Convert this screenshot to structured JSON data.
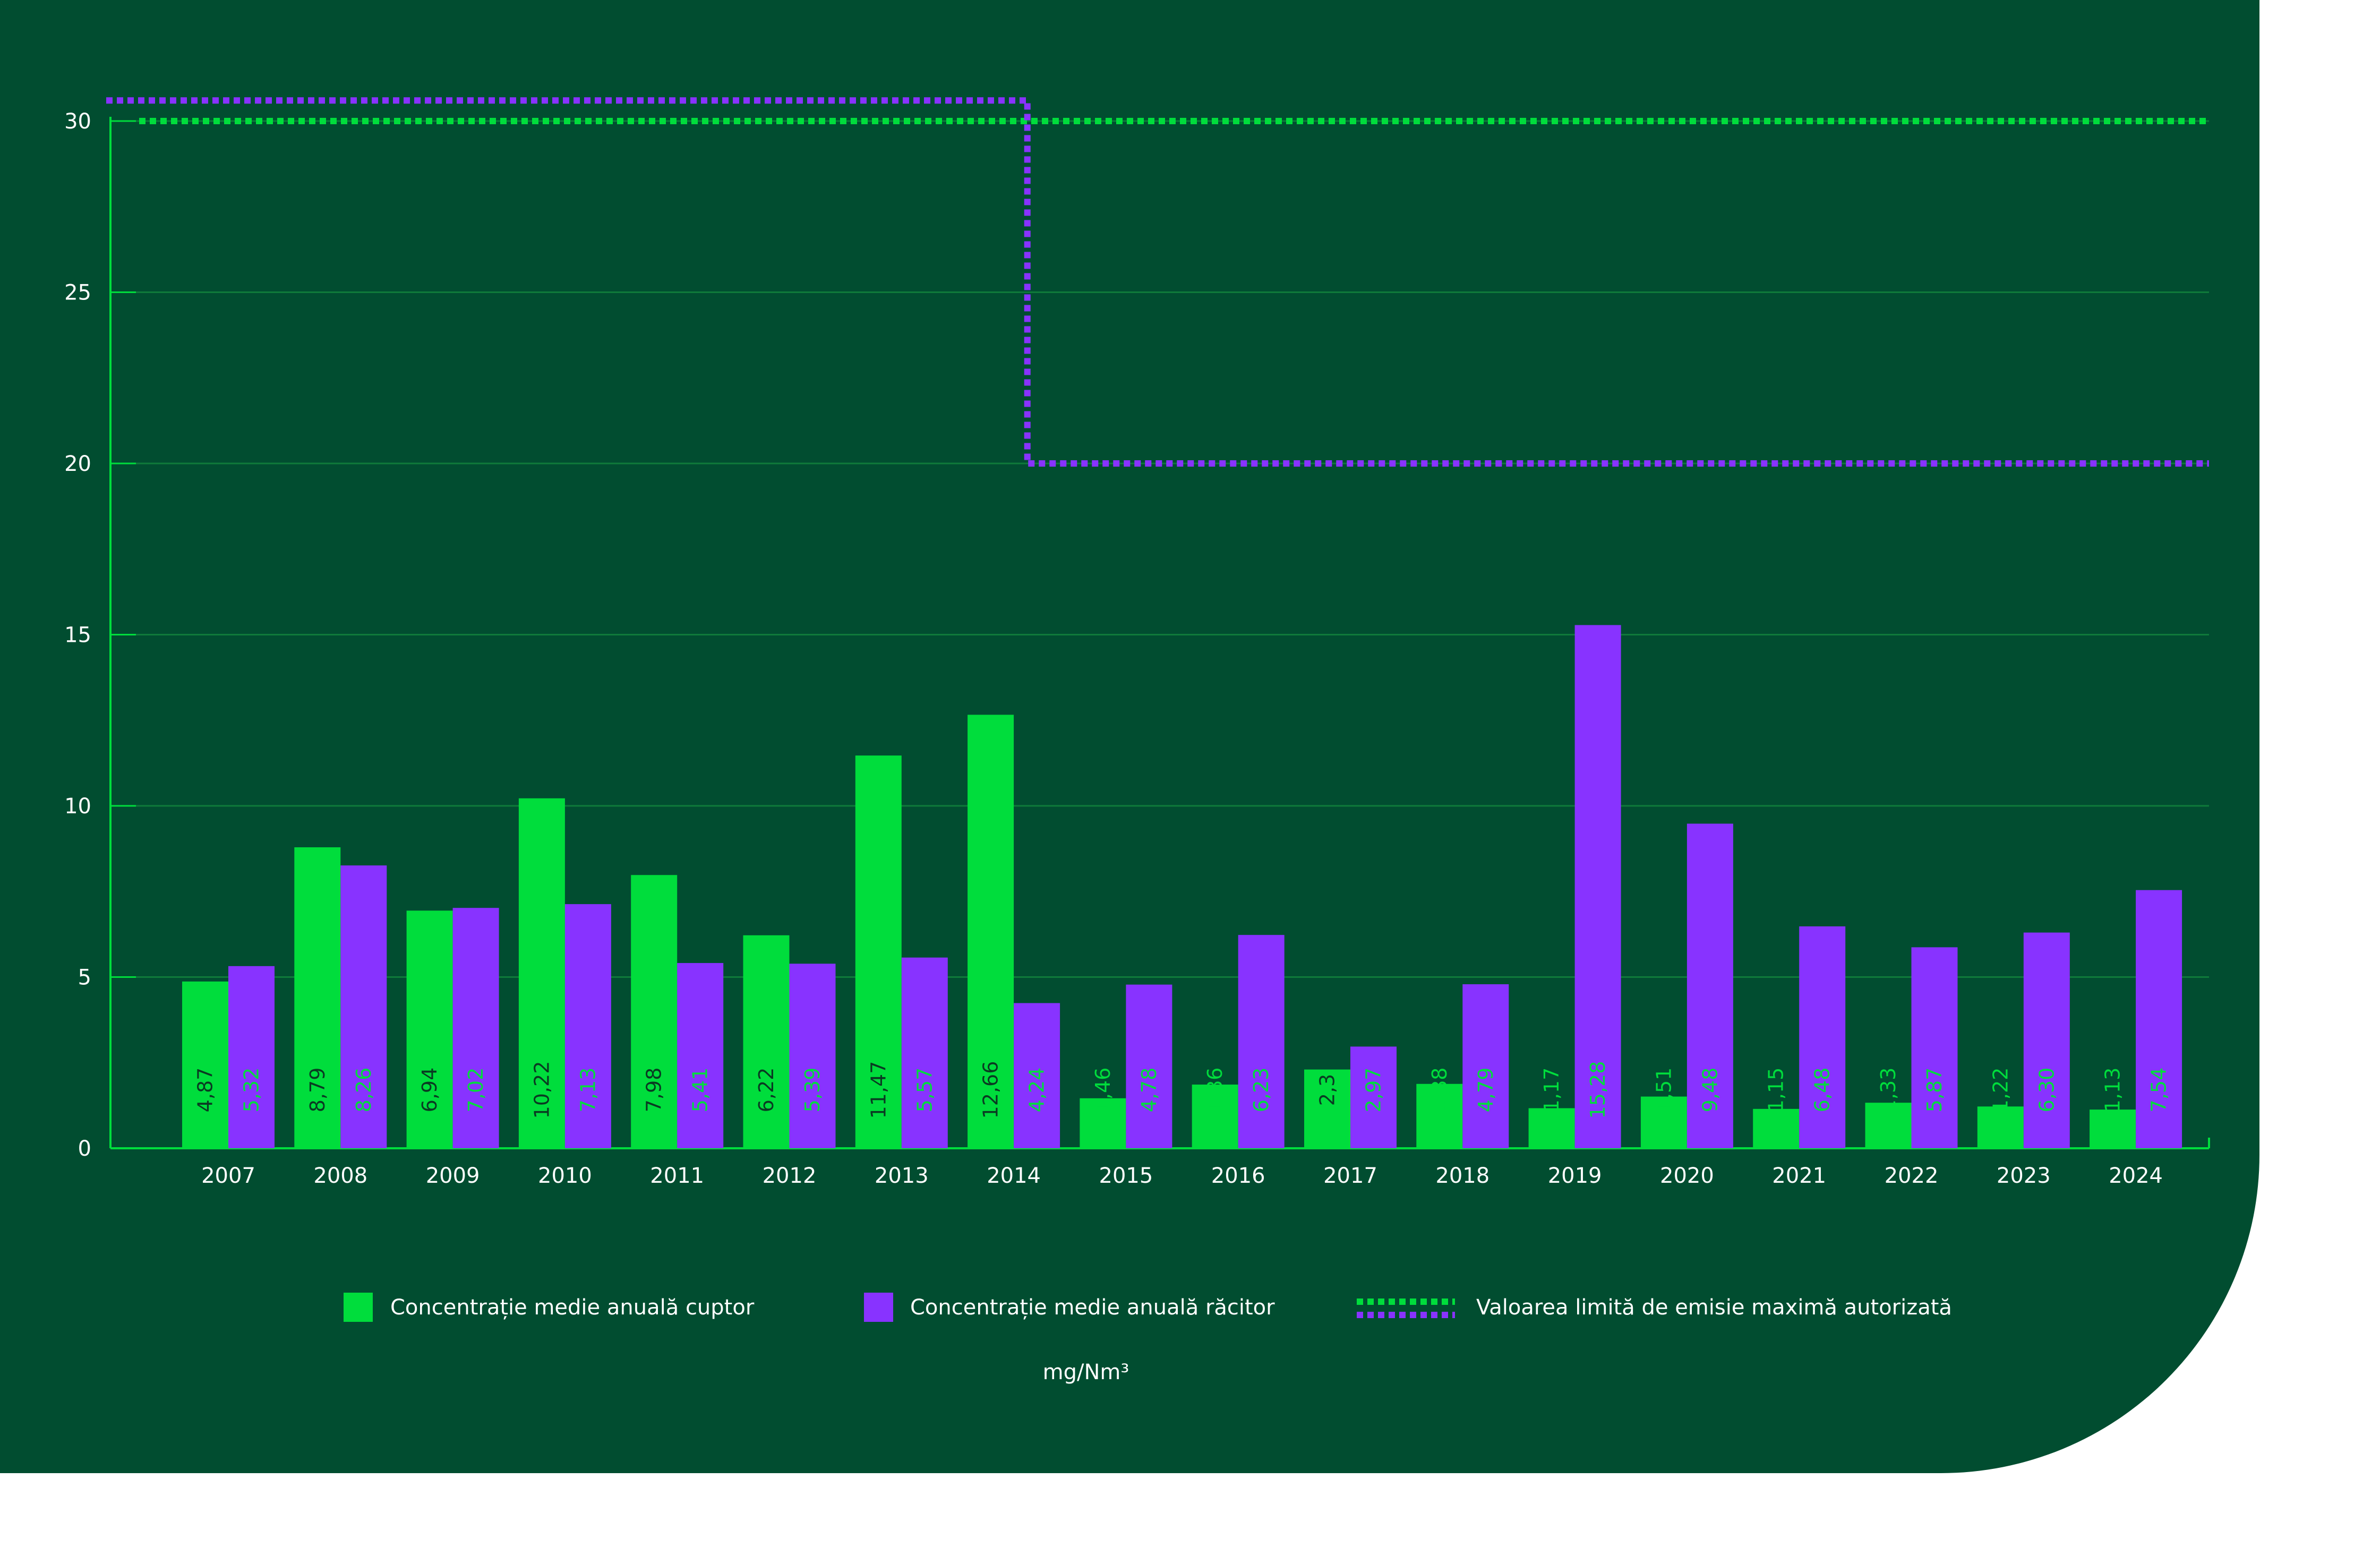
{
  "chart_data": {
    "type": "bar",
    "categories": [
      "2007",
      "2008",
      "2009",
      "2010",
      "2011",
      "2012",
      "2013",
      "2014",
      "2015",
      "2016",
      "2017",
      "2018",
      "2019",
      "2020",
      "2021",
      "2022",
      "2023",
      "2024"
    ],
    "series": [
      {
        "name": "Concentrație medie anuală cuptor",
        "color": "#00dd3c",
        "values": [
          4.87,
          8.79,
          6.94,
          10.22,
          7.98,
          6.22,
          11.47,
          12.66,
          1.46,
          1.86,
          2.3,
          1.88,
          1.17,
          1.51,
          1.15,
          1.33,
          1.22,
          1.13
        ],
        "labels": [
          "4,87",
          "8,79",
          "6,94",
          "10,22",
          "7,98",
          "6,22",
          "11,47",
          "12,66",
          "1,46",
          "1,86",
          "2,3",
          "1,88",
          "1,17",
          "1,51",
          "1,15",
          "1,33",
          "1,22",
          "1,13"
        ]
      },
      {
        "name": "Concentrație medie anuală răcitor",
        "color": "#8833ff",
        "values": [
          5.32,
          8.26,
          7.02,
          7.13,
          5.41,
          5.39,
          5.57,
          4.24,
          4.78,
          6.23,
          2.97,
          4.79,
          15.28,
          9.48,
          6.48,
          5.87,
          6.3,
          7.54
        ],
        "labels": [
          "5,32",
          "8,26",
          "7,02",
          "7,13",
          "5,41",
          "5,39",
          "5,57",
          "4,24",
          "4,78",
          "6,23",
          "2,97",
          "4,79",
          "15,28",
          "9,48",
          "6,48",
          "5,87",
          "6,30",
          "7,54"
        ]
      }
    ],
    "limit_lines": [
      {
        "name": "Valoarea limită de emisie maximă autorizată",
        "color": "#00dd3c",
        "segments": [
          {
            "from": "2007",
            "to": "2024",
            "value": 30
          }
        ]
      },
      {
        "name": "Valoarea limită de emisie maximă autorizată",
        "color": "#8833ff",
        "segments": [
          {
            "from": "2007",
            "to": "2014",
            "value": 30.6
          },
          {
            "from": "2015",
            "to": "2024",
            "value": 20
          }
        ]
      }
    ],
    "yticks": [
      0,
      5,
      10,
      15,
      20,
      25,
      30
    ],
    "ylim": [
      0,
      30
    ],
    "grid": true,
    "legend_placement": "bottom",
    "unit": "mg/Nm³",
    "legend": {
      "series1": "Concentrație medie anuală cuptor",
      "series2": "Concentrație medie anuală răcitor",
      "limit": "Valoarea limită de emisie maximă autorizată"
    }
  },
  "colors": {
    "background": "#014d30",
    "grid": "#0f7a3a",
    "green": "#00dd3c",
    "purple": "#8833ff",
    "text": "#ffffff",
    "label_on_green": "#0a3a22",
    "label_on_purple": "#00dd3c"
  }
}
